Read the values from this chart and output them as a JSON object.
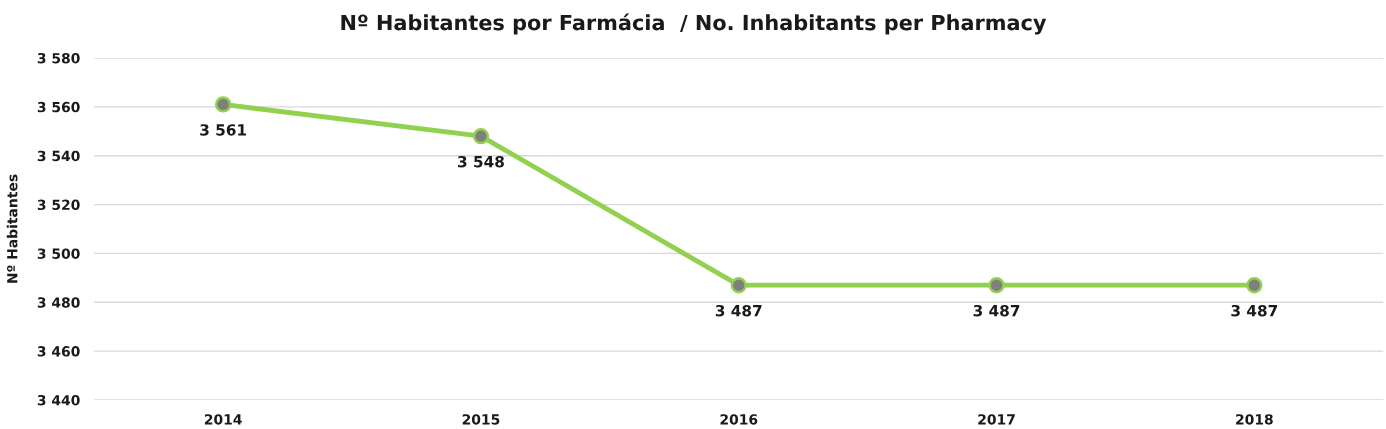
{
  "chart_data": {
    "type": "line",
    "title": "Nº Habitantes por Farmácia  / No. Inhabitants per Pharmacy",
    "ylabel": "Nº Habitantes",
    "categories": [
      "2014",
      "2015",
      "2016",
      "2017",
      "2018"
    ],
    "series": [
      {
        "color": "#92d050",
        "values": [
          3561,
          3548,
          3487,
          3487,
          3487
        ],
        "value_labels": [
          "3 561",
          "3 548",
          "3 487",
          "3 487",
          "3 487"
        ]
      }
    ],
    "ylim": [
      3440,
      3580
    ],
    "yticks": [
      {
        "value": 3440,
        "label": "3 440"
      },
      {
        "value": 3460,
        "label": "3 460"
      },
      {
        "value": 3480,
        "label": "3 480"
      },
      {
        "value": 3500,
        "label": "3 500"
      },
      {
        "value": 3520,
        "label": "3 520"
      },
      {
        "value": 3540,
        "label": "3 540"
      },
      {
        "value": 3560,
        "label": "3 560"
      },
      {
        "value": 3580,
        "label": "3 580"
      }
    ],
    "grid": "y",
    "marker": "circle",
    "line_style": "solid"
  }
}
